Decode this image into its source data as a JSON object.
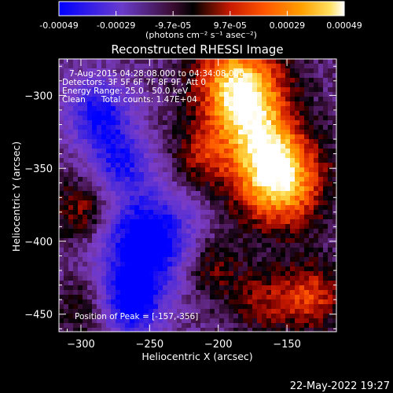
{
  "colorbar": {
    "ticks": [
      "-0.00049",
      "-0.00029",
      "-9.7e-05",
      "9.7e-05",
      "0.00029",
      "0.00049"
    ],
    "units": "(photons cm⁻² s⁻¹ asec⁻²)"
  },
  "chart_data": {
    "type": "heatmap",
    "title": "Reconstructed RHESSI Image",
    "xlabel": "Heliocentric X (arcsec)",
    "ylabel": "Heliocentric Y (arcsec)",
    "xlim": [
      -316,
      -114
    ],
    "ylim": [
      -462,
      -275
    ],
    "xticks": [
      -300,
      -250,
      -200,
      -150
    ],
    "yticks": [
      -300,
      -350,
      -400,
      -450
    ],
    "color_range": [
      -0.00049,
      0.00049
    ],
    "colormap": [
      "#0000ff",
      "#6a3ccc",
      "#8a4bd0",
      "#3a0c30",
      "#000000",
      "#c81a00",
      "#ff5500",
      "#ffa000",
      "#ffe060",
      "#ffffff"
    ],
    "header_lines": [
      "7-Aug-2015 04:28:08.000 to 04:34:08.000",
      "Detectors: 3F 5F 6F 7F 8F 9F, Att 0",
      "Energy Range: 25.0 - 50.0 keV",
      "Clean      Total counts: 1.47E+04"
    ],
    "peak_label": "Position of Peak = [-157,-356]",
    "peak": [
      -157,
      -356
    ],
    "sources": [
      {
        "x": -183,
        "y": -295,
        "intensity": 0.00046
      },
      {
        "x": -157,
        "y": -356,
        "intensity": 0.00049
      },
      {
        "x": -212,
        "y": -342,
        "intensity": 0.00022
      },
      {
        "x": -298,
        "y": -378,
        "intensity": 0.00024
      },
      {
        "x": -207,
        "y": -418,
        "intensity": 0.0002
      },
      {
        "x": -132,
        "y": -438,
        "intensity": 0.0003
      },
      {
        "x": -168,
        "y": -441,
        "intensity": 0.0002
      },
      {
        "x": -296,
        "y": -446,
        "intensity": 0.00015
      },
      {
        "x": -264,
        "y": -443,
        "intensity": -0.0004
      },
      {
        "x": -252,
        "y": -400,
        "intensity": -0.00049
      },
      {
        "x": -272,
        "y": -345,
        "intensity": -0.0003
      },
      {
        "x": -287,
        "y": -312,
        "intensity": -0.00035
      }
    ]
  },
  "footer": {
    "date": "22-May-2022 19:27"
  }
}
